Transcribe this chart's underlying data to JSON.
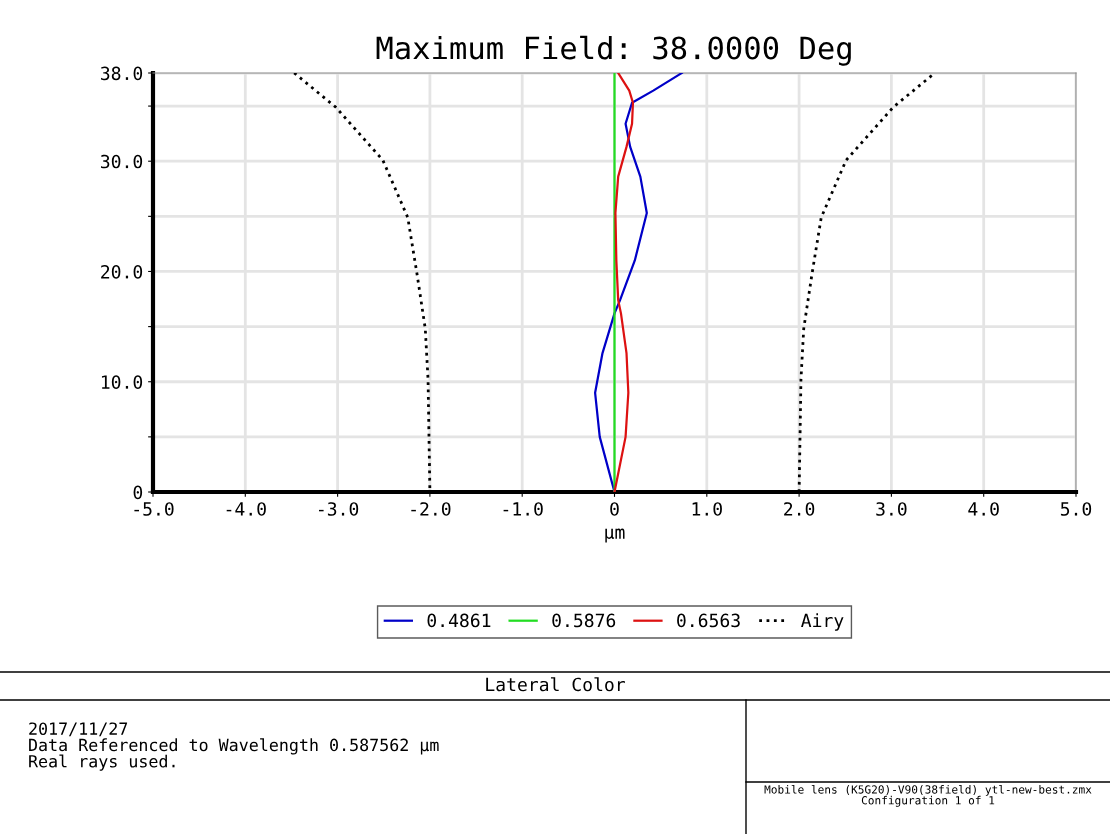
{
  "chart_data": {
    "type": "line",
    "title": "Maximum Field: 38.0000 Deg",
    "xlabel": "µm",
    "xlim": [
      -5,
      5
    ],
    "xticks": [
      {
        "value": -5,
        "label": "-5.0"
      },
      {
        "value": -4,
        "label": "-4.0"
      },
      {
        "value": -3,
        "label": "-3.0"
      },
      {
        "value": -2,
        "label": "-2.0"
      },
      {
        "value": -1,
        "label": "-1.0"
      },
      0,
      {
        "value": 1,
        "label": "1.0"
      },
      {
        "value": 2,
        "label": "2.0"
      },
      {
        "value": 3,
        "label": "3.0"
      },
      {
        "value": 4,
        "label": "4.0"
      },
      {
        "value": 5,
        "label": "5.0"
      }
    ],
    "ylim": [
      0,
      38
    ],
    "yticks": [
      0,
      {
        "value": 5,
        "label": null
      },
      {
        "value": 10,
        "label": "10.0"
      },
      {
        "value": 15,
        "label": null
      },
      {
        "value": 20,
        "label": "20.0"
      },
      {
        "value": 25,
        "label": null
      },
      {
        "value": 30,
        "label": "30.0"
      },
      {
        "value": 35,
        "label": null
      },
      {
        "value": 38,
        "label": "38.0"
      }
    ],
    "grid": true,
    "legend": "bottom",
    "marker": "none",
    "series": [
      {
        "name": "0.4861",
        "color": "#0000c8",
        "line_style": "solid",
        "x": [
          0,
          -0.16,
          -0.21,
          -0.13,
          0,
          0.06,
          0.22,
          0.35,
          0.28,
          0.17,
          0.12,
          0.19,
          0.42,
          0.73
        ],
        "values": [
          0,
          5,
          9,
          12.6,
          16.2,
          17.4,
          21,
          25.3,
          28.6,
          31.3,
          33.4,
          35.3,
          36.4,
          38
        ]
      },
      {
        "name": "0.5876",
        "color": "#22dd22",
        "line_style": "solid",
        "x": [
          0,
          0
        ],
        "values": [
          0,
          38
        ]
      },
      {
        "name": "0.6563",
        "color": "#dd1111",
        "line_style": "solid",
        "x": [
          0,
          0.12,
          0.15,
          0.13,
          0.07,
          0.04,
          0.02,
          0.01,
          0.04,
          0.13,
          0.19,
          0.2,
          0.16,
          0.04
        ],
        "values": [
          0,
          5,
          9,
          12.6,
          16.2,
          17.4,
          21,
          25.3,
          28.6,
          31.3,
          33.4,
          35.3,
          36.4,
          38
        ]
      },
      {
        "name": "Airy",
        "color": "#000000",
        "line_style": "dotted",
        "x": [
          -3.47,
          -3.02,
          -2.51,
          -2.24,
          -2.14,
          -2.05,
          -2.02,
          -2.01,
          -2.0,
          null,
          2.0,
          2.01,
          2.02,
          2.05,
          2.14,
          2.24,
          2.51,
          3.02,
          3.47
        ],
        "values": [
          38,
          34.9,
          30.1,
          24.9,
          19.8,
          14.8,
          10.2,
          5,
          0,
          null,
          0,
          5,
          10.2,
          14.8,
          19.8,
          24.9,
          30.1,
          34.9,
          38
        ]
      }
    ],
    "annotations": [
      "Lateral Color",
      "2017/11/27\nData Referenced to Wavelength 0.587562 µm\nReal rays used.",
      "Mobile lens (K5G20)-V90(38field) ytl-new-best.zmx\nConfiguration 1 of 1"
    ]
  }
}
